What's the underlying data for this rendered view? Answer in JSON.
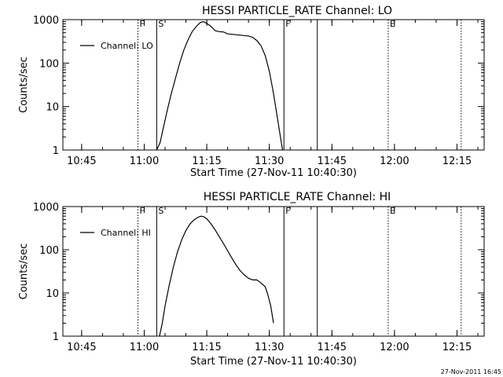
{
  "footer_timestamp": "27-Nov-2011 16:45",
  "chart_data": [
    {
      "type": "line",
      "title": "HESSI PARTICLE_RATE Channel: LO",
      "xlabel": "Start Time (27-Nov-11 10:40:30)",
      "ylabel": "Counts/sec",
      "yscale": "log",
      "ylim": [
        1,
        1000
      ],
      "xlim": [
        "10:40:30",
        "12:21:30"
      ],
      "x_ticks": [
        "10:45",
        "11:00",
        "11:15",
        "11:30",
        "11:45",
        "12:00",
        "12:15"
      ],
      "y_ticks": [
        "1",
        "10",
        "100",
        "1000"
      ],
      "legend": "top-left",
      "series": [
        {
          "name": "Channel: LO",
          "x": [
            "11:03:00",
            "11:03:50",
            "11:04:30",
            "11:05:30",
            "11:06:30",
            "11:07:30",
            "11:08:30",
            "11:09:30",
            "11:10:30",
            "11:11:30",
            "11:12:30",
            "11:13:30",
            "11:14:15",
            "11:15:00",
            "11:16:00",
            "11:17:00",
            "11:18:00",
            "11:19:00",
            "11:20:00",
            "11:21:00",
            "11:22:00",
            "11:23:00",
            "11:24:00",
            "11:25:00",
            "11:26:00",
            "11:27:00",
            "11:28:00",
            "11:29:00",
            "11:30:00",
            "11:31:00",
            "11:32:00",
            "11:32:40",
            "11:33:10"
          ],
          "values": [
            1,
            1.5,
            3,
            8,
            20,
            45,
            100,
            200,
            340,
            530,
            700,
            860,
            900,
            820,
            700,
            560,
            530,
            520,
            470,
            460,
            450,
            440,
            430,
            420,
            390,
            330,
            250,
            150,
            65,
            20,
            5,
            2,
            1
          ]
        }
      ],
      "markers": [
        {
          "label": "F",
          "x": "10:58:30",
          "style": "dotted"
        },
        {
          "label": "S",
          "x": "11:03:00",
          "style": "solid"
        },
        {
          "label": "F",
          "x": "11:33:30",
          "style": "solid"
        },
        {
          "label": "",
          "x": "11:41:30",
          "style": "solid"
        },
        {
          "label": "E",
          "x": "11:58:30",
          "style": "dotted"
        },
        {
          "label": "",
          "x": "12:16:00",
          "style": "dotted"
        }
      ]
    },
    {
      "type": "line",
      "title": "HESSI PARTICLE_RATE Channel: HI",
      "xlabel": "Start Time (27-Nov-11 10:40:30)",
      "ylabel": "Counts/sec",
      "yscale": "log",
      "ylim": [
        1,
        1000
      ],
      "xlim": [
        "10:40:30",
        "12:21:30"
      ],
      "x_ticks": [
        "10:45",
        "11:00",
        "11:15",
        "11:30",
        "11:45",
        "12:00",
        "12:15"
      ],
      "y_ticks": [
        "1",
        "10",
        "100",
        "1000"
      ],
      "legend": "top-left",
      "series": [
        {
          "name": "Channel: HI",
          "x": [
            "11:03:40",
            "11:04:20",
            "11:05:00",
            "11:06:00",
            "11:07:00",
            "11:08:00",
            "11:09:00",
            "11:10:00",
            "11:11:00",
            "11:12:00",
            "11:13:00",
            "11:13:40",
            "11:14:20",
            "11:15:00",
            "11:16:00",
            "11:17:00",
            "11:18:00",
            "11:19:00",
            "11:20:00",
            "11:21:00",
            "11:22:00",
            "11:23:00",
            "11:24:00",
            "11:25:00",
            "11:26:00",
            "11:27:00",
            "11:28:00",
            "11:29:00",
            "11:29:40",
            "11:30:20",
            "11:31:00"
          ],
          "values": [
            1,
            2,
            5,
            15,
            40,
            90,
            170,
            280,
            400,
            500,
            570,
            600,
            580,
            520,
            400,
            290,
            200,
            140,
            95,
            65,
            45,
            33,
            26,
            22,
            20,
            20,
            17,
            14,
            9,
            5,
            2
          ]
        }
      ],
      "markers": [
        {
          "label": "F",
          "x": "10:58:30",
          "style": "dotted"
        },
        {
          "label": "S",
          "x": "11:03:00",
          "style": "solid"
        },
        {
          "label": "F",
          "x": "11:33:30",
          "style": "solid"
        },
        {
          "label": "",
          "x": "11:41:30",
          "style": "solid"
        },
        {
          "label": "E",
          "x": "11:58:30",
          "style": "dotted"
        },
        {
          "label": "",
          "x": "12:16:00",
          "style": "dotted"
        }
      ]
    }
  ]
}
